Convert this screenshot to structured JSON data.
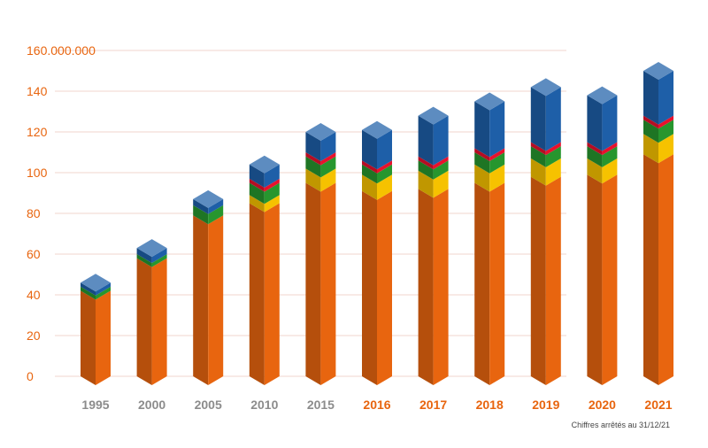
{
  "chart_data": {
    "type": "bar",
    "stacked": true,
    "style": "3d",
    "title": "",
    "xlabel": "",
    "ylabel": "",
    "ylim": [
      0,
      160
    ],
    "y_ticks": [
      "0",
      "20",
      "40",
      "60",
      "80",
      "100",
      "120",
      "140",
      "160.000.000"
    ],
    "categories": [
      "1995",
      "2000",
      "2005",
      "2010",
      "2015",
      "2016",
      "2017",
      "2018",
      "2019",
      "2020",
      "2021"
    ],
    "highlighted_categories": [
      "2016",
      "2017",
      "2018",
      "2019",
      "2020",
      "2021"
    ],
    "grid": true,
    "series": [
      {
        "color": "#e8650f",
        "values": [
          42,
          58,
          79,
          85,
          95,
          91,
          92,
          95,
          98,
          99,
          109
        ]
      },
      {
        "color": "#f6c200",
        "values": [
          0,
          0,
          0,
          4,
          7,
          8,
          9,
          9,
          9,
          8,
          10
        ]
      },
      {
        "color": "#27962e",
        "values": [
          2,
          2,
          5,
          6,
          6,
          5,
          5,
          6,
          6,
          6,
          7
        ]
      },
      {
        "color": "#e8112d",
        "values": [
          0,
          0,
          0,
          2,
          2,
          2,
          2,
          2,
          2,
          2,
          2
        ]
      },
      {
        "color": "#1e5fa8",
        "values": [
          2,
          3,
          3,
          7,
          10,
          15,
          20,
          23,
          27,
          23,
          22
        ]
      }
    ],
    "colors": {
      "axis_text": "#e8650f",
      "old_year_text": "#8c8c8c",
      "new_year_text": "#e8650f",
      "grid": "#f1d6cc"
    }
  },
  "footnote": "Chiffres arrêtés au 31/12/21"
}
